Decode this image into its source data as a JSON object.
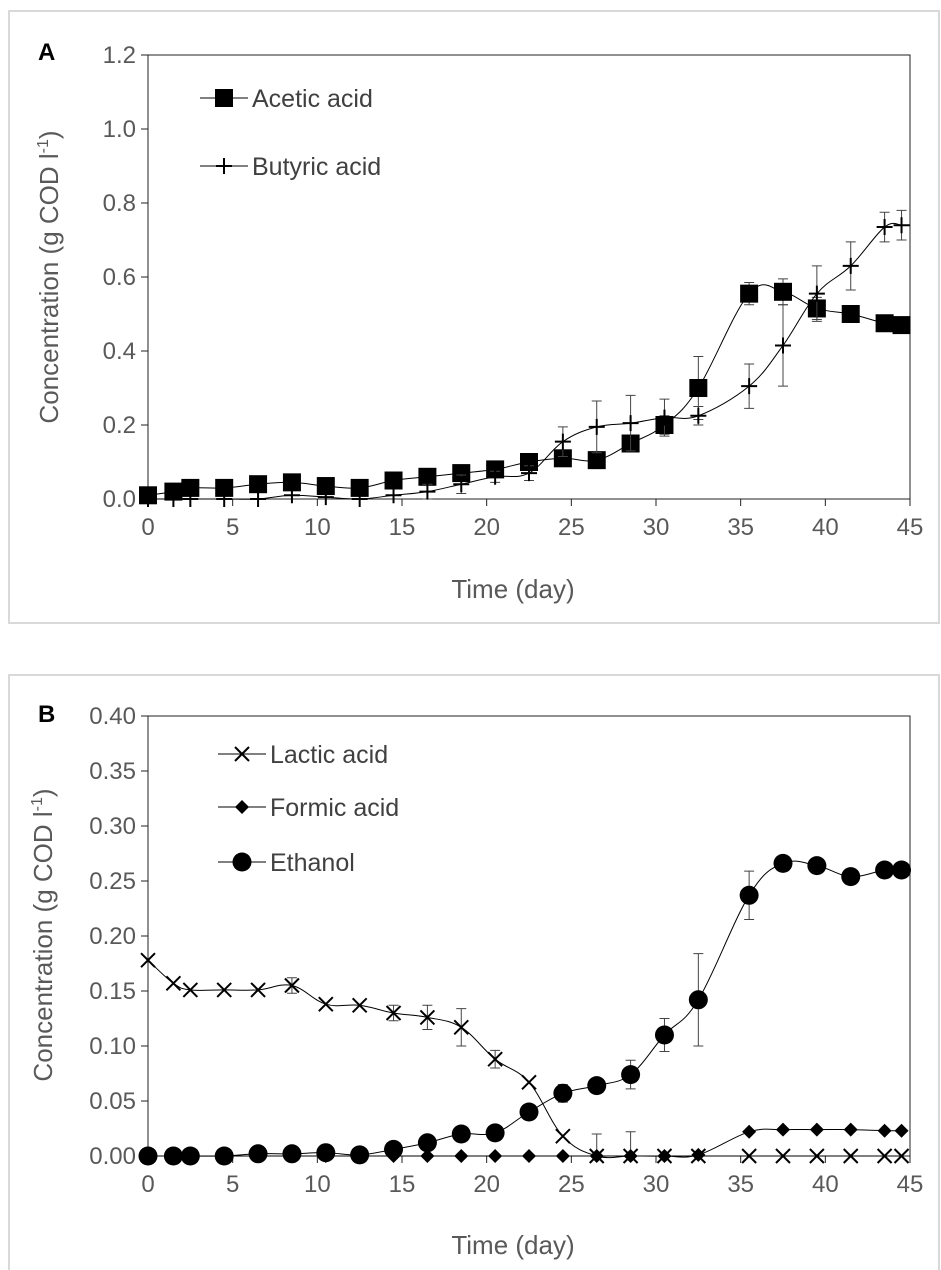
{
  "chart_data": [
    {
      "type": "line",
      "panel_label": "A",
      "xlabel": "Time (day)",
      "ylabel_main": "Concentration (g COD l",
      "ylabel_sup": "-1",
      "ylabel_end": ")",
      "xlim": [
        0,
        45
      ],
      "ylim": [
        0,
        1.2
      ],
      "xticks": [
        "0",
        "5",
        "10",
        "15",
        "20",
        "25",
        "30",
        "35",
        "40",
        "45"
      ],
      "xtick_values": [
        0,
        5,
        10,
        15,
        20,
        25,
        30,
        35,
        40,
        45
      ],
      "yticks": [
        "0.0",
        "0.2",
        "0.4",
        "0.6",
        "0.8",
        "1.0",
        "1.2"
      ],
      "ytick_values": [
        0,
        0.2,
        0.4,
        0.6,
        0.8,
        1.0,
        1.2
      ],
      "series": [
        {
          "name": "Acetic acid",
          "marker": "square",
          "x": [
            0,
            1.5,
            2.5,
            4.5,
            6.5,
            8.5,
            10.5,
            12.5,
            14.5,
            16.5,
            18.5,
            20.5,
            22.5,
            24.5,
            26.5,
            28.5,
            30.5,
            32.5,
            35.5,
            37.5,
            39.5,
            41.5,
            43.5,
            44.5
          ],
          "y": [
            0.01,
            0.02,
            0.03,
            0.03,
            0.04,
            0.045,
            0.035,
            0.03,
            0.05,
            0.06,
            0.07,
            0.08,
            0.1,
            0.11,
            0.105,
            0.15,
            0.2,
            0.3,
            0.555,
            0.56,
            0.515,
            0.5,
            0.475,
            0.47
          ],
          "err": [
            0,
            0,
            0,
            0,
            0,
            0,
            0,
            0,
            0,
            0,
            0,
            0,
            0,
            0,
            0,
            0,
            0.025,
            0.085,
            0.03,
            0.035,
            0.03,
            0,
            0,
            0
          ]
        },
        {
          "name": "Butyric acid",
          "marker": "plus",
          "x": [
            0,
            1.5,
            2.5,
            4.5,
            6.5,
            8.5,
            10.5,
            12.5,
            14.5,
            16.5,
            18.5,
            20.5,
            22.5,
            24.5,
            26.5,
            28.5,
            30.5,
            32.5,
            35.5,
            37.5,
            39.5,
            41.5,
            43.5,
            44.5
          ],
          "y": [
            0,
            0,
            0,
            0,
            0,
            0.01,
            0.005,
            0,
            0.01,
            0.02,
            0.04,
            0.06,
            0.07,
            0.155,
            0.195,
            0.205,
            0.22,
            0.225,
            0.305,
            0.415,
            0.555,
            0.63,
            0.735,
            0.74
          ],
          "err": [
            0,
            0,
            0,
            0,
            0,
            0,
            0,
            0,
            0,
            0.02,
            0.025,
            0.015,
            0.02,
            0.04,
            0.07,
            0.075,
            0.05,
            0.025,
            0.06,
            0.11,
            0.075,
            0.065,
            0.04,
            0.04
          ]
        }
      ]
    },
    {
      "type": "line",
      "panel_label": "B",
      "xlabel": "Time (day)",
      "ylabel_main": "Concentration (g COD l",
      "ylabel_sup": "-1",
      "ylabel_end": ")",
      "xlim": [
        0,
        45
      ],
      "ylim": [
        0,
        0.4
      ],
      "xticks": [
        "0",
        "5",
        "10",
        "15",
        "20",
        "25",
        "30",
        "35",
        "40",
        "45"
      ],
      "xtick_values": [
        0,
        5,
        10,
        15,
        20,
        25,
        30,
        35,
        40,
        45
      ],
      "yticks": [
        "0.00",
        "0.05",
        "0.10",
        "0.15",
        "0.20",
        "0.25",
        "0.30",
        "0.35",
        "0.40"
      ],
      "ytick_values": [
        0,
        0.05,
        0.1,
        0.15,
        0.2,
        0.25,
        0.3,
        0.35,
        0.4
      ],
      "series": [
        {
          "name": "Lactic acid",
          "marker": "x",
          "x": [
            0,
            1.5,
            2.5,
            4.5,
            6.5,
            8.5,
            10.5,
            12.5,
            14.5,
            16.5,
            18.5,
            20.5,
            22.5,
            24.5,
            26.5,
            28.5,
            30.5,
            32.5,
            35.5,
            37.5,
            39.5,
            41.5,
            43.5,
            44.5
          ],
          "y": [
            0.178,
            0.157,
            0.151,
            0.151,
            0.151,
            0.155,
            0.138,
            0.137,
            0.13,
            0.126,
            0.117,
            0.088,
            0.067,
            0.018,
            0,
            0,
            0,
            0,
            0,
            0,
            0,
            0,
            0,
            0
          ],
          "err": [
            0,
            0,
            0,
            0,
            0,
            0.007,
            0,
            0,
            0.007,
            0.011,
            0.017,
            0.008,
            0,
            0,
            0.02,
            0.022,
            0,
            0,
            0,
            0,
            0,
            0,
            0,
            0
          ]
        },
        {
          "name": "Formic acid",
          "marker": "diamond",
          "x": [
            0,
            1.5,
            2.5,
            4.5,
            6.5,
            8.5,
            10.5,
            12.5,
            14.5,
            16.5,
            18.5,
            20.5,
            22.5,
            24.5,
            26.5,
            28.5,
            30.5,
            32.5,
            35.5,
            37.5,
            39.5,
            41.5,
            43.5,
            44.5
          ],
          "y": [
            0,
            0,
            0,
            0,
            0,
            0,
            0,
            0,
            0,
            0,
            0,
            0,
            0,
            0,
            0,
            0,
            0,
            0.001,
            0.022,
            0.024,
            0.024,
            0.024,
            0.023,
            0.023
          ],
          "err": [
            0,
            0,
            0,
            0,
            0,
            0,
            0,
            0,
            0,
            0,
            0,
            0,
            0,
            0,
            0,
            0,
            0,
            0,
            0,
            0,
            0,
            0,
            0,
            0
          ]
        },
        {
          "name": "Ethanol",
          "marker": "circle",
          "x": [
            0,
            1.5,
            2.5,
            4.5,
            6.5,
            8.5,
            10.5,
            12.5,
            14.5,
            16.5,
            18.5,
            20.5,
            22.5,
            24.5,
            26.5,
            28.5,
            30.5,
            32.5,
            35.5,
            37.5,
            39.5,
            41.5,
            43.5,
            44.5
          ],
          "y": [
            0,
            0,
            0,
            0,
            0.002,
            0.002,
            0.003,
            0.001,
            0.006,
            0.012,
            0.02,
            0.021,
            0.04,
            0.057,
            0.064,
            0.074,
            0.11,
            0.142,
            0.237,
            0.266,
            0.264,
            0.254,
            0.26,
            0.26
          ],
          "err": [
            0,
            0,
            0,
            0,
            0,
            0,
            0,
            0,
            0,
            0,
            0,
            0,
            0,
            0.008,
            0.006,
            0.013,
            0.015,
            0.042,
            0.022,
            0,
            0,
            0.007,
            0,
            0
          ]
        }
      ]
    }
  ]
}
